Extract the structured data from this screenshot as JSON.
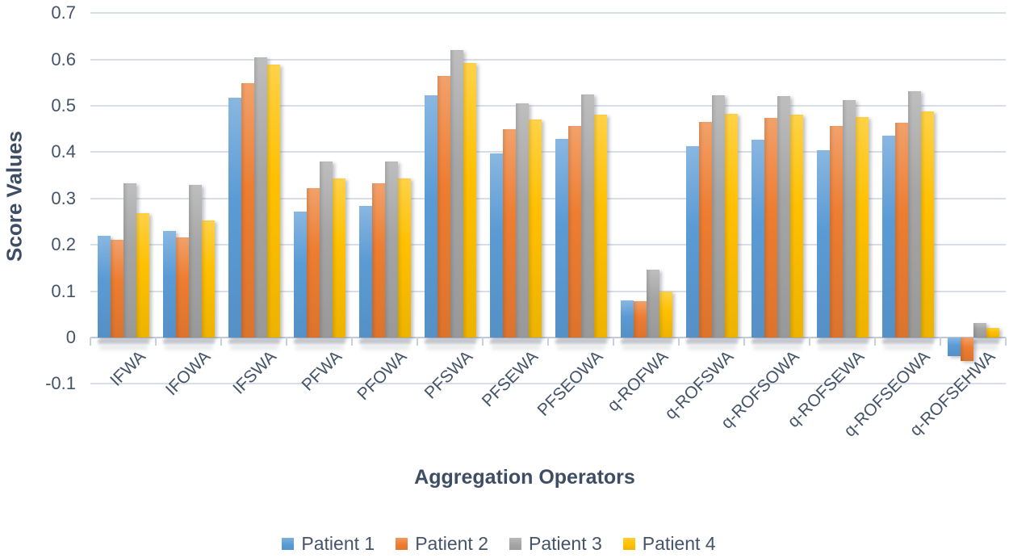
{
  "chart_data": {
    "type": "bar",
    "xlabel": "Aggregation Operators",
    "ylabel": "Score Values",
    "ylim": [
      -0.1,
      0.7
    ],
    "ytick_labels": [
      "0.7",
      "0.6",
      "0.5",
      "0.4",
      "0.3",
      "0.2",
      "0.1",
      "0",
      "-0.1"
    ],
    "grid": true,
    "legend_position": "bottom",
    "categories": [
      "IFWA",
      "IFOWA",
      "IFSWA",
      "PFWA",
      "PFOWA",
      "PFSWA",
      "PFSEWA",
      "PFSEOWA",
      "q-ROFWA",
      "q-ROFSWA",
      "q-ROFSOWA",
      "q-ROFSEWA",
      "q-ROFSEOWA",
      "q-ROFSEHWA"
    ],
    "series": [
      {
        "name": "Patient 1",
        "color": "#5B9BD5",
        "values": [
          0.22,
          0.23,
          0.517,
          0.271,
          0.284,
          0.522,
          0.398,
          0.428,
          0.081,
          0.413,
          0.426,
          0.405,
          0.435,
          -0.04
        ]
      },
      {
        "name": "Patient 2",
        "color": "#ED7D31",
        "values": [
          0.21,
          0.216,
          0.548,
          0.323,
          0.332,
          0.565,
          0.449,
          0.456,
          0.079,
          0.465,
          0.474,
          0.456,
          0.463,
          -0.05
        ]
      },
      {
        "name": "Patient 3",
        "color": "#A5A5A5",
        "values": [
          0.332,
          0.329,
          0.604,
          0.38,
          0.38,
          0.62,
          0.506,
          0.524,
          0.146,
          0.522,
          0.521,
          0.513,
          0.532,
          0.031
        ]
      },
      {
        "name": "Patient 4",
        "color": "#FFC000",
        "values": [
          0.268,
          0.252,
          0.589,
          0.344,
          0.343,
          0.592,
          0.47,
          0.48,
          0.099,
          0.483,
          0.48,
          0.476,
          0.488,
          0.021
        ]
      }
    ]
  },
  "style": {
    "text_color": "#44546A",
    "gridline_color": "#dde3ec",
    "axis_color": "#c6d0e0",
    "background": "#ffffff"
  }
}
